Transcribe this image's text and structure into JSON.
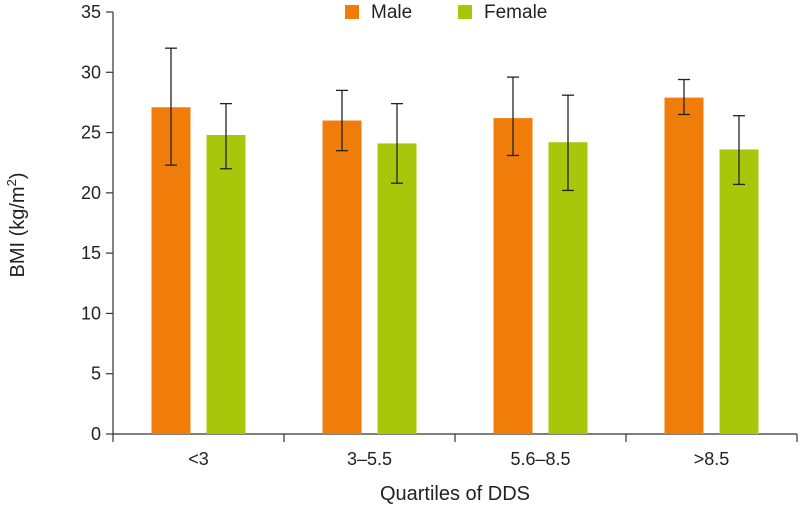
{
  "chart_data": {
    "type": "bar",
    "title": "",
    "xlabel": "Quartiles of DDS",
    "ylabel_main": "BMI (kg/m",
    "ylabel_sup": "2",
    "ylabel_close": ")",
    "ylim": [
      0,
      35
    ],
    "yticks": [
      0,
      5,
      10,
      15,
      20,
      25,
      30,
      35
    ],
    "categories": [
      "<3",
      "3–5.5",
      "5.6–8.5",
      ">8.5"
    ],
    "legend_position": "top-center",
    "series": [
      {
        "name": "Male",
        "color": "#f07d0a",
        "values": [
          27.1,
          26.0,
          26.2,
          27.9
        ],
        "err_low": [
          22.3,
          23.5,
          23.1,
          26.5
        ],
        "err_high": [
          32.0,
          28.5,
          29.6,
          29.4
        ]
      },
      {
        "name": "Female",
        "color": "#a9c70a",
        "values": [
          24.8,
          24.1,
          24.2,
          23.6
        ],
        "err_low": [
          22.0,
          20.8,
          20.2,
          20.7
        ],
        "err_high": [
          27.4,
          27.4,
          28.1,
          26.4
        ]
      }
    ]
  }
}
